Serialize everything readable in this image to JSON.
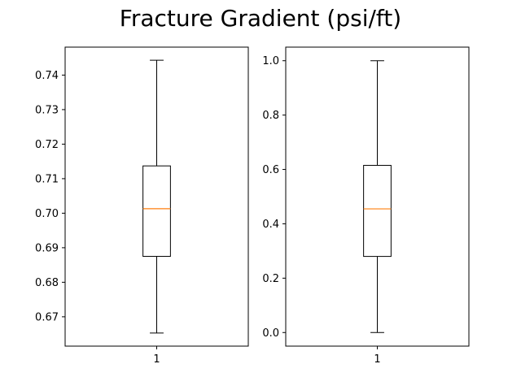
{
  "title": "Fracture Gradient (psi/ft)",
  "chart_data": [
    {
      "type": "boxplot",
      "categories": [
        "1"
      ],
      "box": {
        "whisker_low": 0.6653,
        "q1": 0.6875,
        "median": 0.7013,
        "q3": 0.7137,
        "whisker_high": 0.7443
      },
      "ylim": [
        0.6615,
        0.7481
      ],
      "yticks": [
        0.67,
        0.68,
        0.69,
        0.7,
        0.71,
        0.72,
        0.73,
        0.74
      ],
      "ytick_labels": [
        "0.67",
        "0.68",
        "0.69",
        "0.70",
        "0.71",
        "0.72",
        "0.73",
        "0.74"
      ],
      "box_color": "#000000",
      "median_color": "#ff7f0e"
    },
    {
      "type": "boxplot",
      "categories": [
        "1"
      ],
      "box": {
        "whisker_low": 0.0,
        "q1": 0.28,
        "median": 0.455,
        "q3": 0.615,
        "whisker_high": 1.0
      },
      "ylim": [
        -0.05,
        1.05
      ],
      "yticks": [
        0.0,
        0.2,
        0.4,
        0.6,
        0.8,
        1.0
      ],
      "ytick_labels": [
        "0.0",
        "0.2",
        "0.4",
        "0.6",
        "0.8",
        "1.0"
      ],
      "box_color": "#000000",
      "median_color": "#ff7f0e"
    }
  ]
}
